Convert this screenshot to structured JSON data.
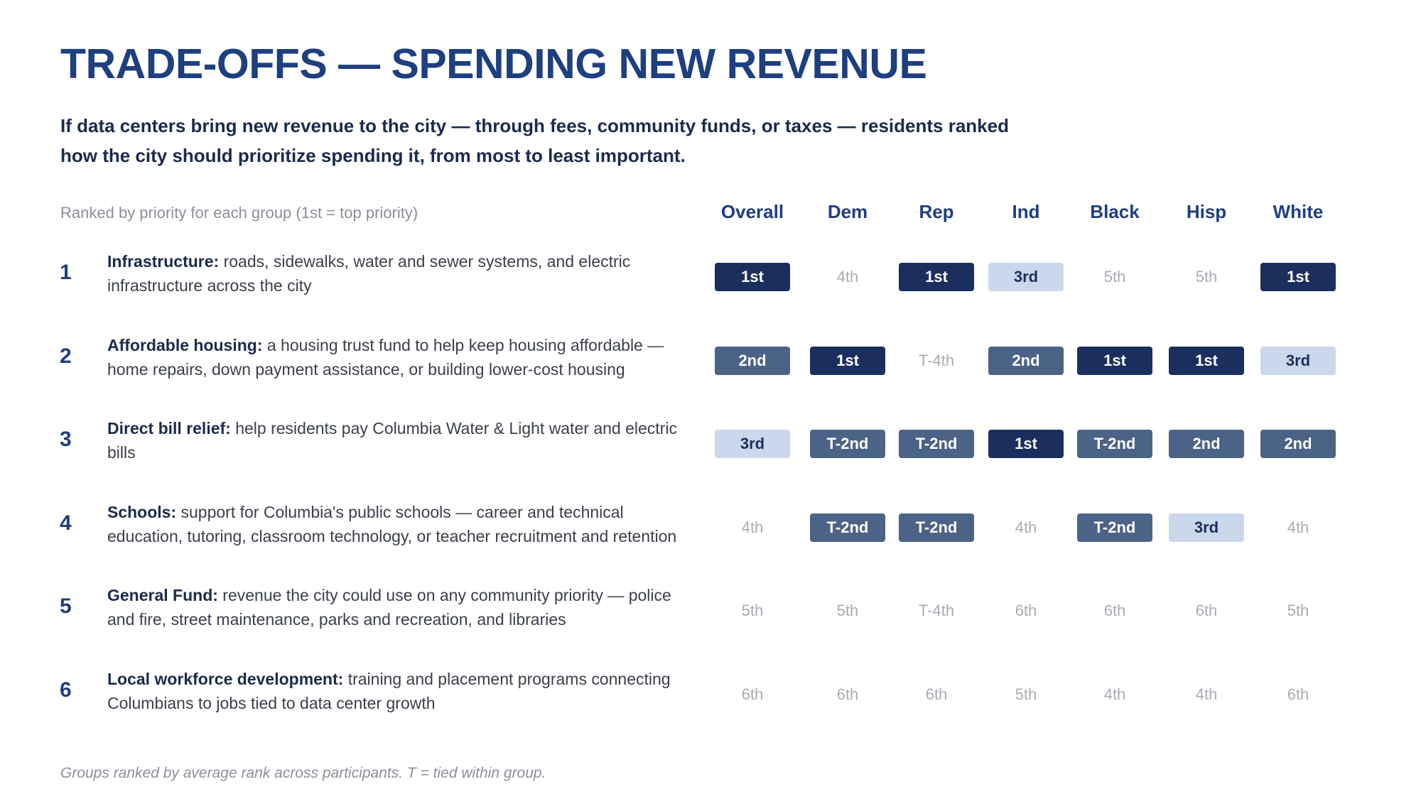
{
  "title": "TRADE-OFFS — SPENDING NEW REVENUE",
  "subtitle": "If data centers bring new revenue to the city — through fees, community funds, or taxes — residents ranked how the city should prioritize spending it, from most to least important.",
  "rank_note": "Ranked by priority for each group (1st = top priority)",
  "columns": [
    "Overall",
    "Dem",
    "Rep",
    "Ind",
    "Black",
    "Hisp",
    "White"
  ],
  "rows": [
    {
      "number": "1",
      "lead": "Infrastructure:",
      "text": " roads, sidewalks, water and sewer systems, and electric infrastructure across the city",
      "ranks": [
        "1st",
        "4th",
        "1st",
        "3rd",
        "5th",
        "5th",
        "1st"
      ],
      "levels": [
        "1",
        "n",
        "1",
        "3",
        "n",
        "n",
        "1"
      ]
    },
    {
      "number": "2",
      "lead": "Affordable housing:",
      "text": " a housing trust fund to help keep housing affordable — home repairs, down payment assistance, or building lower-cost housing",
      "ranks": [
        "2nd",
        "1st",
        "T-4th",
        "2nd",
        "1st",
        "1st",
        "3rd"
      ],
      "levels": [
        "2",
        "1",
        "n",
        "2",
        "1",
        "1",
        "3"
      ]
    },
    {
      "number": "3",
      "lead": "Direct bill relief:",
      "text": " help residents pay Columbia Water & Light water and electric bills",
      "ranks": [
        "3rd",
        "T-2nd",
        "T-2nd",
        "1st",
        "T-2nd",
        "2nd",
        "2nd"
      ],
      "levels": [
        "3",
        "2",
        "2",
        "1",
        "2",
        "2",
        "2"
      ]
    },
    {
      "number": "4",
      "lead": "Schools:",
      "text": " support for Columbia's public schools — career and technical education, tutoring, classroom technology, or teacher recruitment and retention",
      "ranks": [
        "4th",
        "T-2nd",
        "T-2nd",
        "4th",
        "T-2nd",
        "3rd",
        "4th"
      ],
      "levels": [
        "n",
        "2",
        "2",
        "n",
        "2",
        "3",
        "n"
      ]
    },
    {
      "number": "5",
      "lead": "General Fund:",
      "text": " revenue the city could use on any community priority — police and fire, street maintenance, parks and recreation, and libraries",
      "ranks": [
        "5th",
        "5th",
        "T-4th",
        "6th",
        "6th",
        "6th",
        "5th"
      ],
      "levels": [
        "n",
        "n",
        "n",
        "n",
        "n",
        "n",
        "n"
      ]
    },
    {
      "number": "6",
      "lead": "Local workforce development:",
      "text": " training and placement programs connecting Columbians to jobs tied to data center growth",
      "ranks": [
        "6th",
        "6th",
        "6th",
        "5th",
        "4th",
        "4th",
        "6th"
      ],
      "levels": [
        "n",
        "n",
        "n",
        "n",
        "n",
        "n",
        "n"
      ]
    }
  ],
  "footnote": "Groups ranked by average rank across participants. T = tied within group.",
  "colors": {
    "title": "#1e3f80",
    "rank_1st": "#1b2f5e",
    "rank_2nd": "#4c6388",
    "rank_3rd": "#cbd8ec",
    "rank_other_text": "#a7abb3"
  }
}
